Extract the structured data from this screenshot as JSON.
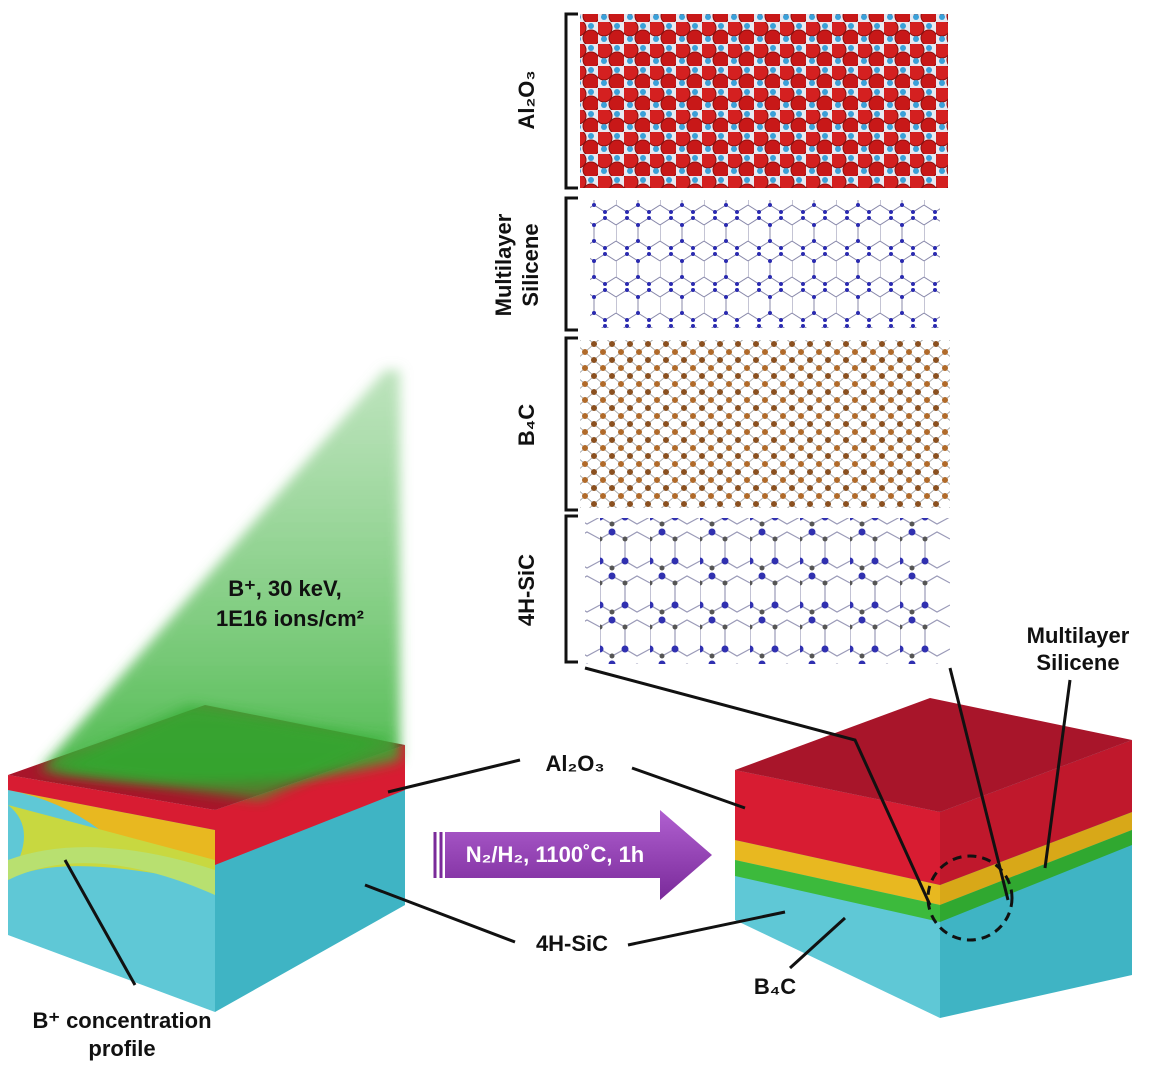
{
  "structure_panel": {
    "layers": [
      {
        "label": [
          "Al₂O₃"
        ]
      },
      {
        "label": [
          "Multilayer",
          "Silicene"
        ]
      },
      {
        "label": [
          "B₄C"
        ]
      },
      {
        "label": [
          "4H-SiC"
        ]
      }
    ]
  },
  "beam": {
    "label": [
      "B⁺, 30 keV,",
      "1E16 ions/cm²"
    ]
  },
  "callouts": {
    "top_layer": "Al₂O₃",
    "substrate": "4H-SiC"
  },
  "arrow": {
    "label": "N₂/H₂, 1100˚C, 1h"
  },
  "right_block": {
    "silicene": [
      "Multilayer",
      "Silicene"
    ],
    "carbide": "B₄C"
  },
  "left_block": {
    "profile": [
      "B⁺ concentration",
      "profile"
    ]
  }
}
